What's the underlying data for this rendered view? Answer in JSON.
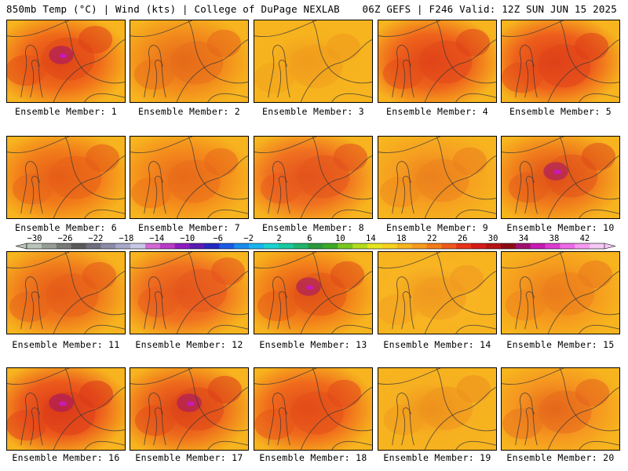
{
  "header": {
    "left": "850mb Temp (°C) | Wind (kts) | College of DuPage NEXLAB",
    "right": "06Z GEFS | F246 Valid: 12Z SUN JUN 15 2025"
  },
  "member_label_prefix": "Ensemble Member: ",
  "members": [
    {
      "number": 1,
      "base": "#f06a1a",
      "intensity": 0.85,
      "hot_core": true
    },
    {
      "number": 2,
      "base": "#f28a1c",
      "intensity": 0.55,
      "hot_core": false
    },
    {
      "number": 3,
      "base": "#f7b31e",
      "intensity": 0.3,
      "hot_core": false
    },
    {
      "number": 4,
      "base": "#ef641c",
      "intensity": 0.8,
      "hot_core": false
    },
    {
      "number": 5,
      "base": "#ee5f1c",
      "intensity": 0.8,
      "hot_core": false
    },
    {
      "number": 6,
      "base": "#f27c1a",
      "intensity": 0.6,
      "hot_core": false
    },
    {
      "number": 7,
      "base": "#f48a1c",
      "intensity": 0.55,
      "hot_core": false
    },
    {
      "number": 8,
      "base": "#f07020",
      "intensity": 0.65,
      "hot_core": false
    },
    {
      "number": 9,
      "base": "#f6a020",
      "intensity": 0.45,
      "hot_core": false
    },
    {
      "number": 10,
      "base": "#f07a1c",
      "intensity": 0.85,
      "hot_core": true
    },
    {
      "number": 11,
      "base": "#f07a1c",
      "intensity": 0.6,
      "hot_core": false
    },
    {
      "number": 12,
      "base": "#f07020",
      "intensity": 0.6,
      "hot_core": false
    },
    {
      "number": 13,
      "base": "#f27c1a",
      "intensity": 0.85,
      "hot_core": true
    },
    {
      "number": 14,
      "base": "#f8b422",
      "intensity": 0.35,
      "hot_core": false
    },
    {
      "number": 15,
      "base": "#f59a1e",
      "intensity": 0.45,
      "hot_core": false
    },
    {
      "number": 16,
      "base": "#ec5a1c",
      "intensity": 0.9,
      "hot_core": true
    },
    {
      "number": 17,
      "base": "#ee6a1c",
      "intensity": 0.9,
      "hot_core": true
    },
    {
      "number": 18,
      "base": "#f06a1c",
      "intensity": 0.7,
      "hot_core": false
    },
    {
      "number": 19,
      "base": "#f7b020",
      "intensity": 0.4,
      "hot_core": false
    },
    {
      "number": 20,
      "base": "#f59420",
      "intensity": 0.7,
      "hot_core": false
    }
  ],
  "colorbar": {
    "labels": [
      "−30",
      "−26",
      "−22",
      "−18",
      "−14",
      "−10",
      "−6",
      "−2",
      "2",
      "6",
      "10",
      "14",
      "18",
      "22",
      "26",
      "30",
      "34",
      "38",
      "42"
    ],
    "colors": [
      "#b9c5b9",
      "#969d96",
      "#777a77",
      "#5a5a5a",
      "#6e6e7d",
      "#8b8ba6",
      "#a7a7c8",
      "#c8c8e6",
      "#d26ad6",
      "#b93cc8",
      "#8c1cc0",
      "#5a1ab4",
      "#2228c0",
      "#1a5ae6",
      "#1a8cf0",
      "#1ab4f0",
      "#1ad2d2",
      "#1ac8a0",
      "#22b46e",
      "#2a9a3c",
      "#3caa28",
      "#78c81e",
      "#b4dc1e",
      "#e6e61e",
      "#f5d21e",
      "#f7b41e",
      "#f69a1e",
      "#f27c1a",
      "#ee5a1a",
      "#e8321a",
      "#d61a1a",
      "#b41414",
      "#8c0c14",
      "#a0106e",
      "#c81ab4",
      "#dc3cd2",
      "#ee6ae6",
      "#f59af0",
      "#f5c8f5"
    ]
  }
}
